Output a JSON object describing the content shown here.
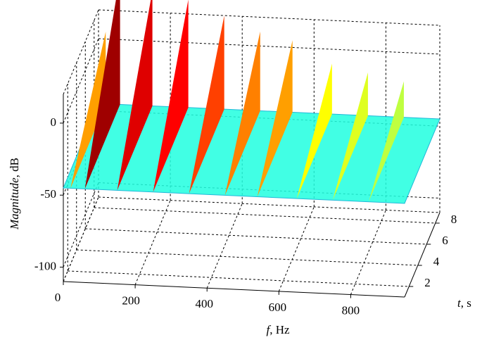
{
  "chart_data": {
    "type": "waterfall3d",
    "xlabel_var": "f",
    "xlabel_unit": ", Hz",
    "ylabel_var": "t",
    "ylabel_unit": ", s",
    "zlabel_var": "Magnitude",
    "zlabel_unit": ", dB",
    "xlim": [
      0,
      950
    ],
    "xticks": [
      0,
      200,
      400,
      600,
      800
    ],
    "ylim": [
      1,
      9
    ],
    "yticks": [
      2,
      4,
      6,
      8
    ],
    "zlim": [
      -110,
      20
    ],
    "zticks": [
      -100,
      -50,
      0
    ],
    "grid": true,
    "colormap": "jet",
    "floor": -45,
    "peaks": {
      "f": [
        20,
        60,
        150,
        250,
        350,
        450,
        540,
        650,
        750,
        850
      ],
      "values": [
        5,
        45,
        35,
        30,
        20,
        10,
        5,
        -10,
        -15,
        -20
      ]
    }
  }
}
